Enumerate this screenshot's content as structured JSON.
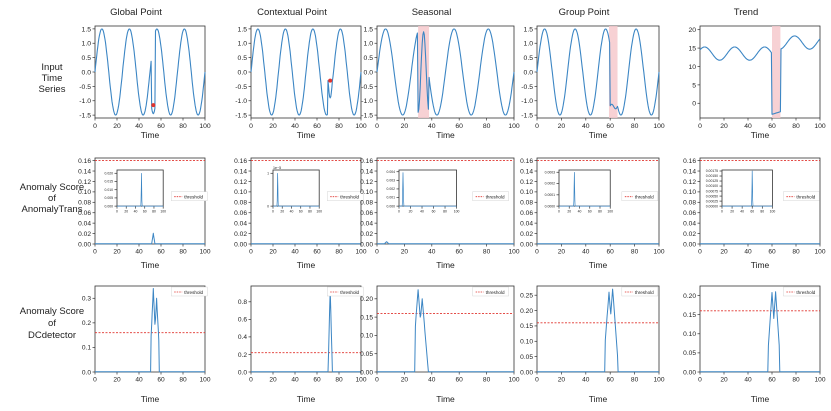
{
  "colors": {
    "line": "#3c86c4",
    "threshold": "#e0342f",
    "anomaly_band": "#f6c9cc",
    "point_marker": "#e0342f",
    "axis": "#333333"
  },
  "row_labels": [
    [
      "Input",
      "Time",
      "Series"
    ],
    [
      "Anomaly Score",
      "of",
      "AnomalyTrans"
    ],
    [
      "Anomaly Score",
      "of",
      "DCdetector"
    ]
  ],
  "x_axis_label": "Time",
  "threshold_legend_label": "threshold",
  "chart_data": {
    "type": "line",
    "title": "Anomaly types: input series and anomaly scores",
    "columns": [
      "Global Point",
      "Contextual Point",
      "Seasonal",
      "Group Point",
      "Trend"
    ],
    "x": {
      "min": 0,
      "max": 100,
      "ticks": [
        "0",
        "20",
        "40",
        "60",
        "80",
        "100"
      ]
    },
    "input_series": [
      {
        "name": "Global Point",
        "ylim": [
          -1.6,
          1.6
        ],
        "yticks": [
          "1.5",
          "1.0",
          "0.5",
          "0.0",
          "-0.5",
          "-1.0",
          "-1.5"
        ],
        "anomaly_point": {
          "x": 53,
          "y": -1.15
        }
      },
      {
        "name": "Contextual Point",
        "ylim": [
          -1.6,
          1.6
        ],
        "yticks": [
          "1.5",
          "1.0",
          "0.5",
          "0.0",
          "-0.5",
          "-1.0",
          "-1.5"
        ],
        "anomaly_point": {
          "x": 72,
          "y": -0.3
        }
      },
      {
        "name": "Seasonal",
        "ylim": [
          -1.6,
          1.6
        ],
        "yticks": [
          "1.5",
          "1.0",
          "0.5",
          "0.0",
          "-0.5",
          "-1.0",
          "-1.5"
        ],
        "anomaly_range": [
          30,
          38
        ]
      },
      {
        "name": "Group Point",
        "ylim": [
          -1.6,
          1.6
        ],
        "yticks": [
          "1.5",
          "1.0",
          "0.5",
          "0.0",
          "-0.5",
          "-1.0",
          "-1.5"
        ],
        "anomaly_range": [
          59,
          66
        ]
      },
      {
        "name": "Trend",
        "ylim": [
          -4,
          21
        ],
        "yticks": [
          "20",
          "15",
          "10",
          "5",
          "0"
        ],
        "anomaly_range": [
          60,
          67
        ]
      }
    ],
    "anomalytrans_scores": [
      {
        "name": "Global Point",
        "ylim": [
          0,
          0.165
        ],
        "yticks": [
          "0.16",
          "0.14",
          "0.12",
          "0.10",
          "0.08",
          "0.06",
          "0.04",
          "0.02",
          "0.00"
        ],
        "threshold": 0.16,
        "peak": {
          "x": 53,
          "y": 0.02
        },
        "inset": {
          "scale_label": "",
          "yticks": [
            "0.020",
            "0.015",
            "0.010",
            "0.005",
            "0.000"
          ],
          "ylim": [
            0,
            0.022
          ],
          "xticks": [
            "0",
            "20",
            "40",
            "60",
            "80",
            "100"
          ],
          "peak": {
            "x": 53,
            "y": 0.02
          }
        }
      },
      {
        "name": "Contextual Point",
        "ylim": [
          0,
          0.165
        ],
        "yticks": [
          "0.16",
          "0.14",
          "0.12",
          "0.10",
          "0.08",
          "0.06",
          "0.04",
          "0.02",
          "0.00"
        ],
        "threshold": 0.16,
        "peak": {
          "x": 10,
          "y": 0.0
        },
        "inset": {
          "scale_label": "1e−5",
          "yticks": [
            "1",
            "0"
          ],
          "ylim": [
            0,
            1.1
          ],
          "xticks": [
            "0",
            "20",
            "40",
            "60",
            "80",
            "100"
          ],
          "peak": {
            "x": 10,
            "y": 1.0
          }
        }
      },
      {
        "name": "Seasonal",
        "ylim": [
          0,
          0.165
        ],
        "yticks": [
          "0.16",
          "0.14",
          "0.12",
          "0.10",
          "0.08",
          "0.06",
          "0.04",
          "0.02",
          "0.00"
        ],
        "threshold": 0.16,
        "peak": {
          "x": 7,
          "y": 0.004
        },
        "inset": {
          "scale_label": "",
          "yticks": [
            "0.004",
            "0.003",
            "0.002",
            "0.001",
            "0.000"
          ],
          "ylim": [
            0,
            0.0042
          ],
          "xticks": [
            "0",
            "20",
            "40",
            "60",
            "80",
            "100"
          ],
          "peak": {
            "x": 7,
            "y": 0.0039
          }
        }
      },
      {
        "name": "Group Point",
        "ylim": [
          0,
          0.165
        ],
        "yticks": [
          "0.16",
          "0.14",
          "0.12",
          "0.10",
          "0.08",
          "0.06",
          "0.04",
          "0.02",
          "0.00"
        ],
        "threshold": 0.16,
        "peak": {
          "x": 30,
          "y": 0.0
        },
        "inset": {
          "scale_label": "",
          "yticks": [
            "0.0003",
            "0.0002",
            "0.0001",
            "0.0000"
          ],
          "ylim": [
            0,
            0.00032
          ],
          "xticks": [
            "0",
            "20",
            "40",
            "60",
            "80",
            "100"
          ],
          "peak": {
            "x": 30,
            "y": 0.0003
          }
        }
      },
      {
        "name": "Trend",
        "ylim": [
          0,
          0.165
        ],
        "yticks": [
          "0.16",
          "0.14",
          "0.12",
          "0.10",
          "0.08",
          "0.06",
          "0.04",
          "0.02",
          "0.00"
        ],
        "threshold": 0.16,
        "peak": {
          "x": 60,
          "y": 0.0
        },
        "inset": {
          "scale_label": "",
          "yticks": [
            "0.00175",
            "0.00150",
            "0.00125",
            "0.00100",
            "0.00075",
            "0.00050",
            "0.00025",
            "0.00000"
          ],
          "ylim": [
            0,
            0.0018
          ],
          "xticks": [
            "0",
            "20",
            "40",
            "60",
            "80",
            "100"
          ],
          "peak": {
            "x": 60,
            "y": 0.00175
          }
        }
      }
    ],
    "dcdetector_scores": [
      {
        "name": "Global Point",
        "ylim": [
          0,
          0.35
        ],
        "yticks": [
          "0.3",
          "0.2",
          "0.1",
          "0.0"
        ],
        "threshold": 0.16,
        "peaks": [
          [
            53,
            0.34
          ],
          [
            56,
            0.3
          ]
        ],
        "range": [
          51,
          58
        ]
      },
      {
        "name": "Contextual Point",
        "ylim": [
          0,
          0.98
        ],
        "yticks": [
          "0.8",
          "0.6",
          "0.4",
          "0.2",
          "0.0"
        ],
        "threshold": 0.22,
        "peaks": [
          [
            72,
            0.93
          ]
        ],
        "range": [
          70,
          74
        ]
      },
      {
        "name": "Seasonal",
        "ylim": [
          0,
          0.235
        ],
        "yticks": [
          "0.20",
          "0.15",
          "0.10",
          "0.05",
          "0.00"
        ],
        "threshold": 0.16,
        "peaks": [
          [
            30,
            0.225
          ],
          [
            33,
            0.2
          ]
        ],
        "range": [
          28,
          37
        ]
      },
      {
        "name": "Group Point",
        "ylim": [
          0,
          0.28
        ],
        "yticks": [
          "0.25",
          "0.20",
          "0.15",
          "0.10",
          "0.05",
          "0.00"
        ],
        "threshold": 0.16,
        "peaks": [
          [
            59,
            0.26
          ],
          [
            62,
            0.27
          ]
        ],
        "range": [
          56,
          66
        ]
      },
      {
        "name": "Trend",
        "ylim": [
          0,
          0.225
        ],
        "yticks": [
          "0.20",
          "0.15",
          "0.10",
          "0.05",
          "0.00"
        ],
        "threshold": 0.16,
        "peaks": [
          [
            60,
            0.208
          ],
          [
            63,
            0.21
          ]
        ],
        "range": [
          57,
          66
        ]
      }
    ]
  }
}
